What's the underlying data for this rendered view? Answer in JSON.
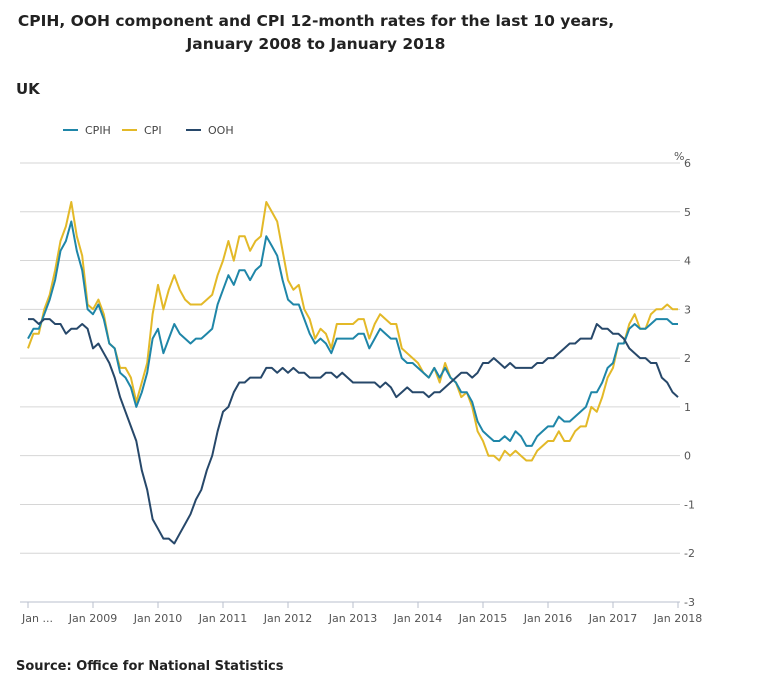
{
  "chart_data": {
    "type": "line",
    "title": "CPIH, OOH component and CPI 12-month rates for the last 10 years, January 2008 to January 2018",
    "subtitle": "UK",
    "source": "Source: Office for National Statistics",
    "ylabel": "%",
    "ylim": [
      -3,
      6
    ],
    "yticks": [
      6,
      5,
      4,
      3,
      2,
      1,
      0,
      -1,
      -2,
      -3
    ],
    "xtick_labels": [
      "Jan ...",
      "Jan 2009",
      "Jan 2010",
      "Jan 2011",
      "Jan 2012",
      "Jan 2013",
      "Jan 2014",
      "Jan 2015",
      "Jan 2016",
      "Jan 2017",
      "Jan 2018"
    ],
    "grid": true,
    "legend_position": "top-left",
    "x": [
      "2008-01",
      "2008-02",
      "2008-03",
      "2008-04",
      "2008-05",
      "2008-06",
      "2008-07",
      "2008-08",
      "2008-09",
      "2008-10",
      "2008-11",
      "2008-12",
      "2009-01",
      "2009-02",
      "2009-03",
      "2009-04",
      "2009-05",
      "2009-06",
      "2009-07",
      "2009-08",
      "2009-09",
      "2009-10",
      "2009-11",
      "2009-12",
      "2010-01",
      "2010-02",
      "2010-03",
      "2010-04",
      "2010-05",
      "2010-06",
      "2010-07",
      "2010-08",
      "2010-09",
      "2010-10",
      "2010-11",
      "2010-12",
      "2011-01",
      "2011-02",
      "2011-03",
      "2011-04",
      "2011-05",
      "2011-06",
      "2011-07",
      "2011-08",
      "2011-09",
      "2011-10",
      "2011-11",
      "2011-12",
      "2012-01",
      "2012-02",
      "2012-03",
      "2012-04",
      "2012-05",
      "2012-06",
      "2012-07",
      "2012-08",
      "2012-09",
      "2012-10",
      "2012-11",
      "2012-12",
      "2013-01",
      "2013-02",
      "2013-03",
      "2013-04",
      "2013-05",
      "2013-06",
      "2013-07",
      "2013-08",
      "2013-09",
      "2013-10",
      "2013-11",
      "2013-12",
      "2014-01",
      "2014-02",
      "2014-03",
      "2014-04",
      "2014-05",
      "2014-06",
      "2014-07",
      "2014-08",
      "2014-09",
      "2014-10",
      "2014-11",
      "2014-12",
      "2015-01",
      "2015-02",
      "2015-03",
      "2015-04",
      "2015-05",
      "2015-06",
      "2015-07",
      "2015-08",
      "2015-09",
      "2015-10",
      "2015-11",
      "2015-12",
      "2016-01",
      "2016-02",
      "2016-03",
      "2016-04",
      "2016-05",
      "2016-06",
      "2016-07",
      "2016-08",
      "2016-09",
      "2016-10",
      "2016-11",
      "2016-12",
      "2017-01",
      "2017-02",
      "2017-03",
      "2017-04",
      "2017-05",
      "2017-06",
      "2017-07",
      "2017-08",
      "2017-09",
      "2017-10",
      "2017-11",
      "2017-12",
      "2018-01"
    ],
    "series": [
      {
        "name": "CPIH",
        "color": "#1f86a8",
        "values": [
          2.4,
          2.6,
          2.6,
          2.9,
          3.2,
          3.6,
          4.2,
          4.4,
          4.8,
          4.2,
          3.8,
          3.0,
          2.9,
          3.1,
          2.8,
          2.3,
          2.2,
          1.7,
          1.6,
          1.4,
          1.0,
          1.3,
          1.7,
          2.4,
          2.6,
          2.1,
          2.4,
          2.7,
          2.5,
          2.4,
          2.3,
          2.4,
          2.4,
          2.5,
          2.6,
          3.1,
          3.4,
          3.7,
          3.5,
          3.8,
          3.8,
          3.6,
          3.8,
          3.9,
          4.5,
          4.3,
          4.1,
          3.6,
          3.2,
          3.1,
          3.1,
          2.8,
          2.5,
          2.3,
          2.4,
          2.3,
          2.1,
          2.4,
          2.4,
          2.4,
          2.4,
          2.5,
          2.5,
          2.2,
          2.4,
          2.6,
          2.5,
          2.4,
          2.4,
          2.0,
          1.9,
          1.9,
          1.8,
          1.7,
          1.6,
          1.8,
          1.6,
          1.8,
          1.6,
          1.5,
          1.3,
          1.3,
          1.1,
          0.7,
          0.5,
          0.4,
          0.3,
          0.3,
          0.4,
          0.3,
          0.5,
          0.4,
          0.2,
          0.2,
          0.4,
          0.5,
          0.6,
          0.6,
          0.8,
          0.7,
          0.7,
          0.8,
          0.9,
          1.0,
          1.3,
          1.3,
          1.5,
          1.8,
          1.9,
          2.3,
          2.3,
          2.6,
          2.7,
          2.6,
          2.6,
          2.7,
          2.8,
          2.8,
          2.8,
          2.7,
          2.7
        ]
      },
      {
        "name": "CPI",
        "color": "#e3b928",
        "values": [
          2.2,
          2.5,
          2.5,
          3.0,
          3.3,
          3.8,
          4.4,
          4.7,
          5.2,
          4.5,
          4.1,
          3.1,
          3.0,
          3.2,
          2.9,
          2.3,
          2.2,
          1.8,
          1.8,
          1.6,
          1.1,
          1.5,
          1.9,
          2.9,
          3.5,
          3.0,
          3.4,
          3.7,
          3.4,
          3.2,
          3.1,
          3.1,
          3.1,
          3.2,
          3.3,
          3.7,
          4.0,
          4.4,
          4.0,
          4.5,
          4.5,
          4.2,
          4.4,
          4.5,
          5.2,
          5.0,
          4.8,
          4.2,
          3.6,
          3.4,
          3.5,
          3.0,
          2.8,
          2.4,
          2.6,
          2.5,
          2.2,
          2.7,
          2.7,
          2.7,
          2.7,
          2.8,
          2.8,
          2.4,
          2.7,
          2.9,
          2.8,
          2.7,
          2.7,
          2.2,
          2.1,
          2.0,
          1.9,
          1.7,
          1.6,
          1.8,
          1.5,
          1.9,
          1.6,
          1.5,
          1.2,
          1.3,
          1.0,
          0.5,
          0.3,
          0.0,
          0.0,
          -0.1,
          0.1,
          0.0,
          0.1,
          0.0,
          -0.1,
          -0.1,
          0.1,
          0.2,
          0.3,
          0.3,
          0.5,
          0.3,
          0.3,
          0.5,
          0.6,
          0.6,
          1.0,
          0.9,
          1.2,
          1.6,
          1.8,
          2.3,
          2.3,
          2.7,
          2.9,
          2.6,
          2.6,
          2.9,
          3.0,
          3.0,
          3.1,
          3.0,
          3.0
        ]
      },
      {
        "name": "OOH",
        "color": "#27486a",
        "values": [
          2.8,
          2.8,
          2.7,
          2.8,
          2.8,
          2.7,
          2.7,
          2.5,
          2.6,
          2.6,
          2.7,
          2.6,
          2.2,
          2.3,
          2.1,
          1.9,
          1.6,
          1.2,
          0.9,
          0.6,
          0.3,
          -0.3,
          -0.7,
          -1.3,
          -1.5,
          -1.7,
          -1.7,
          -1.8,
          -1.6,
          -1.4,
          -1.2,
          -0.9,
          -0.7,
          -0.3,
          0.0,
          0.5,
          0.9,
          1.0,
          1.3,
          1.5,
          1.5,
          1.6,
          1.6,
          1.6,
          1.8,
          1.8,
          1.7,
          1.8,
          1.7,
          1.8,
          1.7,
          1.7,
          1.6,
          1.6,
          1.6,
          1.7,
          1.7,
          1.6,
          1.7,
          1.6,
          1.5,
          1.5,
          1.5,
          1.5,
          1.5,
          1.4,
          1.5,
          1.4,
          1.2,
          1.3,
          1.4,
          1.3,
          1.3,
          1.3,
          1.2,
          1.3,
          1.3,
          1.4,
          1.5,
          1.6,
          1.7,
          1.7,
          1.6,
          1.7,
          1.9,
          1.9,
          2.0,
          1.9,
          1.8,
          1.9,
          1.8,
          1.8,
          1.8,
          1.8,
          1.9,
          1.9,
          2.0,
          2.0,
          2.1,
          2.2,
          2.3,
          2.3,
          2.4,
          2.4,
          2.4,
          2.7,
          2.6,
          2.6,
          2.5,
          2.5,
          2.4,
          2.2,
          2.1,
          2.0,
          2.0,
          1.9,
          1.9,
          1.6,
          1.5,
          1.3,
          1.2
        ]
      }
    ]
  }
}
